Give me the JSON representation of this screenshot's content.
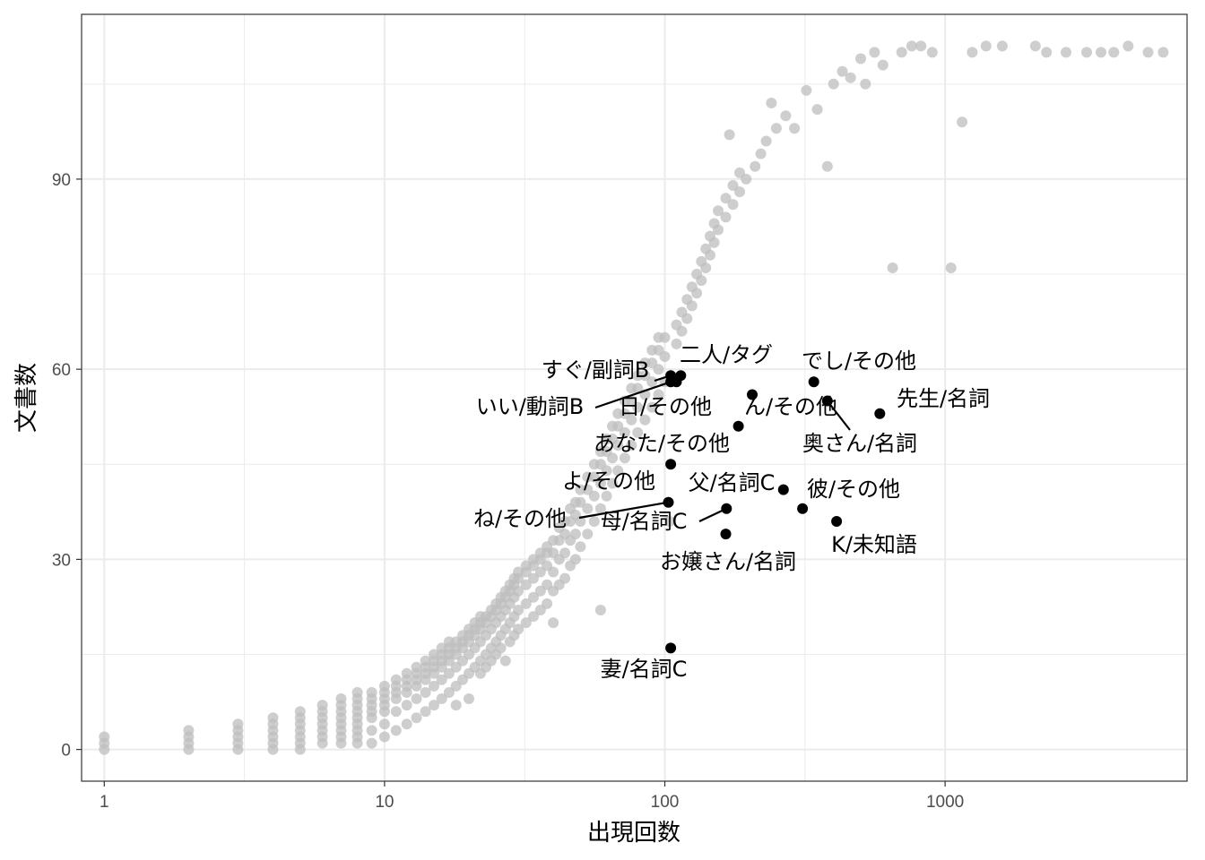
{
  "chart_data": {
    "type": "scatter",
    "title": "",
    "xlabel": "出現回数",
    "ylabel": "文書数",
    "x_scale": "log10",
    "xlim": [
      0.83,
      7300
    ],
    "ylim": [
      -5,
      116
    ],
    "x_ticks": [
      {
        "value": 1,
        "label": "1"
      },
      {
        "value": 10,
        "label": "10"
      },
      {
        "value": 100,
        "label": "100"
      },
      {
        "value": 1000,
        "label": "1000"
      }
    ],
    "y_ticks": [
      {
        "value": 0,
        "label": "0"
      },
      {
        "value": 30,
        "label": "30"
      },
      {
        "value": 60,
        "label": "60"
      },
      {
        "value": 90,
        "label": "90"
      }
    ],
    "grid": true,
    "background_points": [
      [
        1,
        0
      ],
      [
        1,
        1
      ],
      [
        1,
        2
      ],
      [
        2,
        0
      ],
      [
        2,
        1
      ],
      [
        2,
        2
      ],
      [
        2,
        3
      ],
      [
        3,
        0
      ],
      [
        3,
        1
      ],
      [
        3,
        2
      ],
      [
        3,
        3
      ],
      [
        3,
        4
      ],
      [
        4,
        0
      ],
      [
        4,
        1
      ],
      [
        4,
        2
      ],
      [
        4,
        3
      ],
      [
        4,
        4
      ],
      [
        4,
        5
      ],
      [
        5,
        0
      ],
      [
        5,
        1
      ],
      [
        5,
        2
      ],
      [
        5,
        3
      ],
      [
        5,
        4
      ],
      [
        5,
        5
      ],
      [
        5,
        6
      ],
      [
        6,
        1
      ],
      [
        6,
        2
      ],
      [
        6,
        3
      ],
      [
        6,
        4
      ],
      [
        6,
        5
      ],
      [
        6,
        6
      ],
      [
        6,
        7
      ],
      [
        7,
        1
      ],
      [
        7,
        2
      ],
      [
        7,
        3
      ],
      [
        7,
        4
      ],
      [
        7,
        5
      ],
      [
        7,
        6
      ],
      [
        7,
        7
      ],
      [
        7,
        8
      ],
      [
        8,
        1
      ],
      [
        8,
        2
      ],
      [
        8,
        3
      ],
      [
        8,
        4
      ],
      [
        8,
        5
      ],
      [
        8,
        6
      ],
      [
        8,
        7
      ],
      [
        8,
        8
      ],
      [
        8,
        9
      ],
      [
        9,
        1
      ],
      [
        9,
        3
      ],
      [
        9,
        5
      ],
      [
        9,
        6
      ],
      [
        9,
        7
      ],
      [
        9,
        8
      ],
      [
        9,
        9
      ],
      [
        10,
        2
      ],
      [
        10,
        4
      ],
      [
        10,
        6
      ],
      [
        10,
        7
      ],
      [
        10,
        8
      ],
      [
        10,
        9
      ],
      [
        10,
        10
      ],
      [
        11,
        3
      ],
      [
        11,
        6
      ],
      [
        11,
        8
      ],
      [
        11,
        9
      ],
      [
        11,
        10
      ],
      [
        11,
        11
      ],
      [
        12,
        4
      ],
      [
        12,
        7
      ],
      [
        12,
        9
      ],
      [
        12,
        10
      ],
      [
        12,
        11
      ],
      [
        12,
        12
      ],
      [
        13,
        5
      ],
      [
        13,
        8
      ],
      [
        13,
        10
      ],
      [
        13,
        11
      ],
      [
        13,
        12
      ],
      [
        13,
        13
      ],
      [
        14,
        6
      ],
      [
        14,
        9
      ],
      [
        14,
        11
      ],
      [
        14,
        12
      ],
      [
        14,
        13
      ],
      [
        14,
        14
      ],
      [
        15,
        7
      ],
      [
        15,
        10
      ],
      [
        15,
        12
      ],
      [
        15,
        13
      ],
      [
        15,
        14
      ],
      [
        15,
        15
      ],
      [
        16,
        8
      ],
      [
        16,
        11
      ],
      [
        16,
        13
      ],
      [
        16,
        14
      ],
      [
        16,
        15
      ],
      [
        16,
        16
      ],
      [
        17,
        9
      ],
      [
        17,
        12
      ],
      [
        17,
        14
      ],
      [
        17,
        15
      ],
      [
        17,
        16
      ],
      [
        17,
        17
      ],
      [
        18,
        7
      ],
      [
        18,
        10
      ],
      [
        18,
        13
      ],
      [
        18,
        15
      ],
      [
        18,
        16
      ],
      [
        18,
        17
      ],
      [
        19,
        11
      ],
      [
        19,
        14
      ],
      [
        19,
        16
      ],
      [
        19,
        17
      ],
      [
        19,
        18
      ],
      [
        20,
        8
      ],
      [
        20,
        12
      ],
      [
        20,
        15
      ],
      [
        20,
        17
      ],
      [
        20,
        18
      ],
      [
        20,
        19
      ],
      [
        21,
        13
      ],
      [
        21,
        16
      ],
      [
        21,
        18
      ],
      [
        21,
        19
      ],
      [
        21,
        20
      ],
      [
        22,
        12
      ],
      [
        22,
        14
      ],
      [
        22,
        17
      ],
      [
        22,
        19
      ],
      [
        22,
        20
      ],
      [
        22,
        21
      ],
      [
        23,
        13
      ],
      [
        23,
        15
      ],
      [
        23,
        18
      ],
      [
        23,
        20
      ],
      [
        23,
        21
      ],
      [
        24,
        14
      ],
      [
        24,
        16
      ],
      [
        24,
        19
      ],
      [
        24,
        21
      ],
      [
        24,
        22
      ],
      [
        25,
        15
      ],
      [
        25,
        17
      ],
      [
        25,
        20
      ],
      [
        25,
        22
      ],
      [
        25,
        23
      ],
      [
        26,
        16
      ],
      [
        26,
        18
      ],
      [
        26,
        21
      ],
      [
        26,
        23
      ],
      [
        26,
        24
      ],
      [
        27,
        14
      ],
      [
        27,
        19
      ],
      [
        27,
        22
      ],
      [
        27,
        24
      ],
      [
        27,
        25
      ],
      [
        28,
        17
      ],
      [
        28,
        20
      ],
      [
        28,
        23
      ],
      [
        28,
        25
      ],
      [
        28,
        26
      ],
      [
        29,
        18
      ],
      [
        29,
        21
      ],
      [
        29,
        24
      ],
      [
        29,
        26
      ],
      [
        29,
        27
      ],
      [
        30,
        19
      ],
      [
        30,
        22
      ],
      [
        30,
        25
      ],
      [
        30,
        27
      ],
      [
        30,
        28
      ],
      [
        32,
        20
      ],
      [
        32,
        23
      ],
      [
        32,
        26
      ],
      [
        32,
        28
      ],
      [
        32,
        29
      ],
      [
        34,
        21
      ],
      [
        34,
        24
      ],
      [
        34,
        27
      ],
      [
        34,
        29
      ],
      [
        34,
        30
      ],
      [
        36,
        22
      ],
      [
        36,
        25
      ],
      [
        36,
        28
      ],
      [
        36,
        30
      ],
      [
        36,
        31
      ],
      [
        38,
        23
      ],
      [
        38,
        26
      ],
      [
        38,
        29
      ],
      [
        38,
        31
      ],
      [
        38,
        32
      ],
      [
        40,
        20
      ],
      [
        40,
        25
      ],
      [
        40,
        28
      ],
      [
        40,
        31
      ],
      [
        40,
        33
      ],
      [
        42,
        26
      ],
      [
        42,
        30
      ],
      [
        42,
        33
      ],
      [
        42,
        35
      ],
      [
        44,
        27
      ],
      [
        44,
        31
      ],
      [
        44,
        34
      ],
      [
        44,
        36
      ],
      [
        46,
        29
      ],
      [
        46,
        33
      ],
      [
        46,
        36
      ],
      [
        46,
        38
      ],
      [
        48,
        30
      ],
      [
        48,
        34
      ],
      [
        48,
        37
      ],
      [
        48,
        39
      ],
      [
        50,
        32
      ],
      [
        50,
        36
      ],
      [
        50,
        39
      ],
      [
        50,
        41
      ],
      [
        53,
        34
      ],
      [
        53,
        38
      ],
      [
        53,
        41
      ],
      [
        53,
        43
      ],
      [
        56,
        36
      ],
      [
        56,
        40
      ],
      [
        56,
        43
      ],
      [
        56,
        45
      ],
      [
        59,
        22
      ],
      [
        59,
        38
      ],
      [
        59,
        42
      ],
      [
        59,
        45
      ],
      [
        59,
        47
      ],
      [
        62,
        40
      ],
      [
        62,
        44
      ],
      [
        62,
        47
      ],
      [
        62,
        49
      ],
      [
        65,
        42
      ],
      [
        65,
        46
      ],
      [
        65,
        49
      ],
      [
        65,
        51
      ],
      [
        68,
        44
      ],
      [
        68,
        48
      ],
      [
        68,
        51
      ],
      [
        68,
        53
      ],
      [
        72,
        46
      ],
      [
        72,
        50
      ],
      [
        72,
        53
      ],
      [
        72,
        55
      ],
      [
        76,
        48
      ],
      [
        76,
        52
      ],
      [
        76,
        55
      ],
      [
        76,
        57
      ],
      [
        80,
        50
      ],
      [
        80,
        54
      ],
      [
        80,
        57
      ],
      [
        80,
        59
      ],
      [
        85,
        52
      ],
      [
        85,
        56
      ],
      [
        85,
        59
      ],
      [
        85,
        61
      ],
      [
        90,
        54
      ],
      [
        90,
        58
      ],
      [
        90,
        61
      ],
      [
        90,
        63
      ],
      [
        95,
        56
      ],
      [
        95,
        60
      ],
      [
        95,
        63
      ],
      [
        95,
        65
      ],
      [
        100,
        58
      ],
      [
        100,
        62
      ],
      [
        100,
        65
      ],
      [
        104,
        36
      ],
      [
        110,
        64
      ],
      [
        110,
        67
      ],
      [
        115,
        66
      ],
      [
        115,
        69
      ],
      [
        120,
        68
      ],
      [
        120,
        71
      ],
      [
        125,
        70
      ],
      [
        125,
        73
      ],
      [
        130,
        72
      ],
      [
        130,
        75
      ],
      [
        135,
        74
      ],
      [
        135,
        77
      ],
      [
        140,
        76
      ],
      [
        140,
        79
      ],
      [
        145,
        78
      ],
      [
        145,
        81
      ],
      [
        150,
        80
      ],
      [
        150,
        83
      ],
      [
        155,
        82
      ],
      [
        155,
        85
      ],
      [
        165,
        84
      ],
      [
        165,
        87
      ],
      [
        170,
        97
      ],
      [
        175,
        86
      ],
      [
        175,
        89
      ],
      [
        185,
        88
      ],
      [
        185,
        91
      ],
      [
        195,
        90
      ],
      [
        210,
        92
      ],
      [
        220,
        94
      ],
      [
        230,
        96
      ],
      [
        240,
        102
      ],
      [
        250,
        98
      ],
      [
        270,
        100
      ],
      [
        290,
        98
      ],
      [
        320,
        104
      ],
      [
        350,
        101
      ],
      [
        380,
        92
      ],
      [
        400,
        105
      ],
      [
        430,
        107
      ],
      [
        460,
        106
      ],
      [
        500,
        109
      ],
      [
        520,
        105
      ],
      [
        560,
        110
      ],
      [
        600,
        108
      ],
      [
        650,
        76
      ],
      [
        700,
        110
      ],
      [
        760,
        111
      ],
      [
        820,
        111
      ],
      [
        900,
        110
      ],
      [
        1050,
        76
      ],
      [
        1150,
        99
      ],
      [
        1250,
        110
      ],
      [
        1400,
        111
      ],
      [
        1600,
        111
      ],
      [
        2100,
        111
      ],
      [
        2300,
        110
      ],
      [
        2700,
        110
      ],
      [
        3200,
        110
      ],
      [
        3600,
        110
      ],
      [
        4000,
        110
      ],
      [
        4500,
        111
      ],
      [
        5300,
        110
      ],
      [
        6000,
        110
      ]
    ],
    "labeled_points": [
      {
        "label": "すぐ/副詞B",
        "x": 105,
        "y": 59
      },
      {
        "label": "二人/タグ",
        "x": 114,
        "y": 59
      },
      {
        "label": "いい/動詞B",
        "x": 105,
        "y": 58
      },
      {
        "label": "日/その他",
        "x": 110,
        "y": 58
      },
      {
        "label": "でし/その他",
        "x": 340,
        "y": 58
      },
      {
        "label": "ん/その他",
        "x": 205,
        "y": 56
      },
      {
        "label": "奥さん/名詞",
        "x": 380,
        "y": 55
      },
      {
        "label": "先生/名詞",
        "x": 585,
        "y": 53
      },
      {
        "label": "あなた/その他",
        "x": 183,
        "y": 51
      },
      {
        "label": "よ/その他",
        "x": 105,
        "y": 45
      },
      {
        "label": "父/名詞C",
        "x": 265,
        "y": 41
      },
      {
        "label": "ね/その他",
        "x": 103,
        "y": 39
      },
      {
        "label": "母/名詞C",
        "x": 166,
        "y": 38
      },
      {
        "label": "彼/その他",
        "x": 310,
        "y": 38
      },
      {
        "label": "K/未知語",
        "x": 410,
        "y": 36
      },
      {
        "label": "お嬢さん/名詞",
        "x": 165,
        "y": 34
      },
      {
        "label": "妻/名詞C",
        "x": 105,
        "y": 16
      }
    ],
    "colors": {
      "background_point": "#bebebe",
      "highlight_point": "#000000",
      "grid": "#ebebeb",
      "panel_border": "#333333"
    }
  }
}
